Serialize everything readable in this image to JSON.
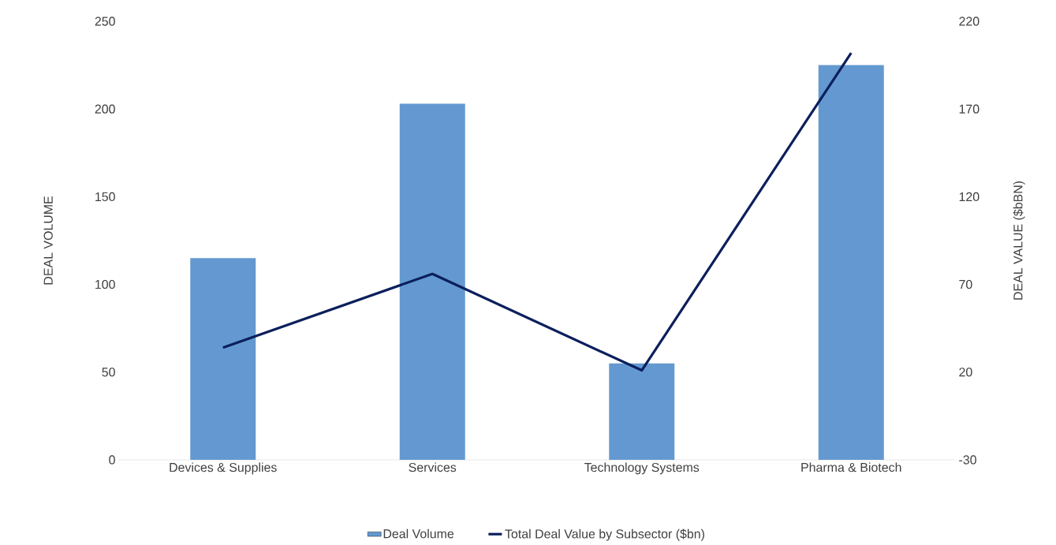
{
  "chart_data": {
    "type": "bar",
    "categories": [
      "Devices & Supplies",
      "Services",
      "Technology Systems",
      "Pharma & Biotech"
    ],
    "series": [
      {
        "name": "Deal Volume",
        "color": "#6399d0",
        "values": [
          115,
          203,
          55,
          225
        ]
      },
      {
        "name": "Total Deal Value by Subsector ($bn)",
        "type": "line",
        "axis": "y2",
        "color": "#0b1f5c",
        "values": [
          34,
          76,
          21,
          202
        ]
      }
    ],
    "ylabel": "DEAL VOLUME",
    "y2label": "DEAL VALUE ($bBN)",
    "ylim": [
      0,
      250
    ],
    "yticks": [
      0,
      50,
      100,
      150,
      200,
      250
    ],
    "y2lim": [
      -30,
      220
    ],
    "y2ticks": [
      -30,
      20,
      70,
      120,
      170,
      220
    ],
    "legend": "bottom",
    "grid": false
  }
}
